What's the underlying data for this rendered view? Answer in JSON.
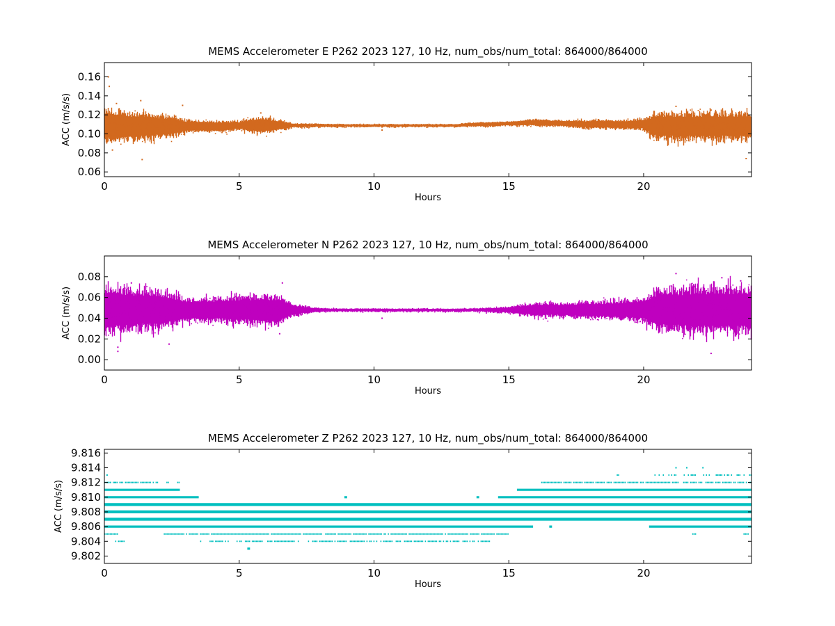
{
  "chart_data": [
    {
      "type": "scatter",
      "title": "MEMS Accelerometer E P262 2023 127, 10 Hz, num_obs/num_total: 864000/864000",
      "xlabel": "Hours",
      "ylabel": "ACC (m/s/s)",
      "xlim": [
        0,
        24
      ],
      "ylim": [
        0.055,
        0.175
      ],
      "xticks": [
        0,
        5,
        10,
        15,
        20
      ],
      "xtick_labels": [
        "0",
        "5",
        "10",
        "15",
        "20"
      ],
      "yticks": [
        0.06,
        0.08,
        0.1,
        0.12,
        0.14,
        0.16
      ],
      "ytick_labels": [
        "0.06",
        "0.08",
        "0.10",
        "0.12",
        "0.14",
        "0.16"
      ],
      "grid": false,
      "color": "#d2691e",
      "series": [
        {
          "envelope": {
            "x": [
              0.0,
              0.5,
              1.0,
              1.5,
              2.0,
              2.5,
              3.0,
              3.5,
              4.0,
              4.5,
              5.0,
              5.5,
              6.0,
              6.5,
              7.0,
              8.0,
              9.0,
              10.0,
              11.0,
              12.0,
              13.0,
              13.5,
              14.0,
              15.0,
              16.0,
              17.0,
              18.0,
              19.0,
              20.0,
              20.5,
              21.0,
              22.0,
              23.0,
              24.0
            ],
            "center": [
              0.108,
              0.108,
              0.108,
              0.108,
              0.108,
              0.108,
              0.108,
              0.108,
              0.108,
              0.108,
              0.109,
              0.109,
              0.109,
              0.109,
              0.109,
              0.109,
              0.109,
              0.109,
              0.109,
              0.109,
              0.109,
              0.11,
              0.11,
              0.111,
              0.112,
              0.111,
              0.11,
              0.11,
              0.11,
              0.108,
              0.108,
              0.108,
              0.108,
              0.108
            ],
            "spread": [
              0.016,
              0.015,
              0.013,
              0.013,
              0.011,
              0.01,
              0.006,
              0.005,
              0.005,
              0.005,
              0.004,
              0.007,
              0.007,
              0.005,
              0.002,
              0.0015,
              0.0012,
              0.0012,
              0.0012,
              0.0012,
              0.0012,
              0.0015,
              0.002,
              0.002,
              0.003,
              0.003,
              0.004,
              0.004,
              0.005,
              0.013,
              0.013,
              0.013,
              0.013,
              0.013
            ]
          },
          "outliers": [
            [
              0.15,
              0.16
            ],
            [
              0.18,
              0.15
            ],
            [
              0.45,
              0.132
            ],
            [
              1.35,
              0.135
            ],
            [
              0.3,
              0.083
            ],
            [
              1.4,
              0.073
            ],
            [
              23.8,
              0.074
            ],
            [
              21.2,
              0.129
            ],
            [
              22.5,
              0.125
            ],
            [
              2.9,
              0.13
            ],
            [
              10.3,
              0.104
            ],
            [
              5.8,
              0.122
            ]
          ]
        }
      ]
    },
    {
      "type": "scatter",
      "title": "MEMS Accelerometer N P262 2023 127, 10 Hz, num_obs/num_total: 864000/864000",
      "xlabel": "Hours",
      "ylabel": "ACC (m/s/s)",
      "xlim": [
        0,
        24
      ],
      "ylim": [
        -0.01,
        0.1
      ],
      "xticks": [
        0,
        5,
        10,
        15,
        20
      ],
      "xtick_labels": [
        "0",
        "5",
        "10",
        "15",
        "20"
      ],
      "yticks": [
        0.0,
        0.02,
        0.04,
        0.06,
        0.08
      ],
      "ytick_labels": [
        "0.00",
        "0.02",
        "0.04",
        "0.06",
        "0.08"
      ],
      "grid": false,
      "color": "#bf00bf",
      "series": [
        {
          "envelope": {
            "x": [
              0.0,
              0.5,
              1.0,
              1.5,
              2.0,
              2.5,
              3.0,
              3.5,
              4.0,
              4.5,
              5.0,
              5.5,
              6.0,
              6.5,
              7.0,
              7.5,
              8.0,
              9.0,
              10.0,
              11.0,
              12.0,
              13.0,
              14.0,
              15.0,
              16.0,
              17.0,
              18.0,
              19.0,
              20.0,
              20.5,
              21.0,
              22.0,
              23.0,
              24.0
            ],
            "center": [
              0.048,
              0.048,
              0.048,
              0.048,
              0.048,
              0.048,
              0.048,
              0.048,
              0.048,
              0.048,
              0.048,
              0.048,
              0.048,
              0.048,
              0.048,
              0.048,
              0.048,
              0.048,
              0.048,
              0.048,
              0.048,
              0.048,
              0.048,
              0.048,
              0.048,
              0.048,
              0.048,
              0.048,
              0.048,
              0.048,
              0.048,
              0.048,
              0.048,
              0.048
            ],
            "spread": [
              0.02,
              0.02,
              0.018,
              0.017,
              0.016,
              0.014,
              0.01,
              0.01,
              0.01,
              0.011,
              0.012,
              0.012,
              0.012,
              0.012,
              0.005,
              0.003,
              0.0015,
              0.0012,
              0.0012,
              0.0012,
              0.0012,
              0.0012,
              0.0015,
              0.003,
              0.006,
              0.006,
              0.007,
              0.008,
              0.01,
              0.018,
              0.018,
              0.02,
              0.02,
              0.02
            ]
          },
          "outliers": [
            [
              0.5,
              0.012
            ],
            [
              0.5,
              0.008
            ],
            [
              2.4,
              0.015
            ],
            [
              21.2,
              0.083
            ],
            [
              22.5,
              0.006
            ],
            [
              22.9,
              0.079
            ],
            [
              1.0,
              0.074
            ],
            [
              6.6,
              0.074
            ],
            [
              23.6,
              0.076
            ],
            [
              10.3,
              0.04
            ],
            [
              6.5,
              0.025
            ]
          ]
        }
      ]
    },
    {
      "type": "scatter",
      "title": "MEMS Accelerometer Z P262 2023 127, 10 Hz, num_obs/num_total: 864000/864000",
      "xlabel": "Hours",
      "ylabel": "ACC (m/s/s)",
      "xlim": [
        0,
        24
      ],
      "ylim": [
        9.801,
        9.8165
      ],
      "xticks": [
        0,
        5,
        10,
        15,
        20
      ],
      "xtick_labels": [
        "0",
        "5",
        "10",
        "15",
        "20"
      ],
      "yticks": [
        9.802,
        9.804,
        9.806,
        9.808,
        9.81,
        9.812,
        9.814,
        9.816
      ],
      "ytick_labels": [
        "9.802",
        "9.804",
        "9.806",
        "9.808",
        "9.810",
        "9.812",
        "9.814",
        "9.816"
      ],
      "grid": false,
      "color": "#00bfbf",
      "series": [
        {
          "levels": [
            {
              "y": 9.813,
              "segments": [
                [
                  0.0,
                  0.1
                ],
                [
                  0.4,
                  0.6
                ],
                [
                  0.7,
                  0.8
                ],
                [
                  18.3,
                  18.4
                ],
                [
                  19.0,
                  19.1
                ],
                [
                  20.4,
                  24.0
                ]
              ],
              "density": 0.4
            },
            {
              "y": 9.812,
              "segments": [
                [
                  0.0,
                  0.4
                ],
                [
                  0.4,
                  1.8
                ],
                [
                  1.9,
                  2.0
                ],
                [
                  2.3,
                  2.4
                ],
                [
                  2.7,
                  2.8
                ],
                [
                  16.2,
                  24.0
                ]
              ],
              "density": 0.85
            },
            {
              "y": 9.811,
              "segments": [
                [
                  0.0,
                  2.8
                ],
                [
                  15.3,
                  24.0
                ]
              ],
              "density": 1
            },
            {
              "y": 9.81,
              "segments": [
                [
                  0.0,
                  3.5
                ],
                [
                  8.9,
                  9.0
                ],
                [
                  13.8,
                  13.9
                ],
                [
                  14.6,
                  24.0
                ]
              ],
              "density": 1
            },
            {
              "y": 9.809,
              "segments": [
                [
                  0.0,
                  24.0
                ]
              ],
              "density": 1
            },
            {
              "y": 9.808,
              "segments": [
                [
                  0.0,
                  24.0
                ]
              ],
              "density": 1
            },
            {
              "y": 9.807,
              "segments": [
                [
                  0.0,
                  24.0
                ]
              ],
              "density": 1
            },
            {
              "y": 9.806,
              "segments": [
                [
                  0.0,
                  15.9
                ],
                [
                  16.5,
                  16.6
                ],
                [
                  20.2,
                  24.0
                ]
              ],
              "density": 1
            },
            {
              "y": 9.805,
              "segments": [
                [
                  0.0,
                  0.5
                ],
                [
                  2.2,
                  15.0
                ],
                [
                  21.8,
                  22.0
                ],
                [
                  23.7,
                  23.9
                ]
              ],
              "density": 0.9
            },
            {
              "y": 9.804,
              "segments": [
                [
                  0.4,
                  0.8
                ],
                [
                  3.5,
                  3.6
                ],
                [
                  3.9,
                  4.6
                ],
                [
                  4.9,
                  7.2
                ],
                [
                  7.5,
                  14.3
                ]
              ],
              "density": 0.7
            },
            {
              "y": 9.803,
              "segments": [
                [
                  5.3,
                  5.4
                ]
              ],
              "density": 1
            }
          ],
          "outliers": [
            [
              21.2,
              9.814
            ],
            [
              21.6,
              9.814
            ],
            [
              22.2,
              9.814
            ],
            [
              0.1,
              9.813
            ]
          ]
        }
      ]
    }
  ]
}
